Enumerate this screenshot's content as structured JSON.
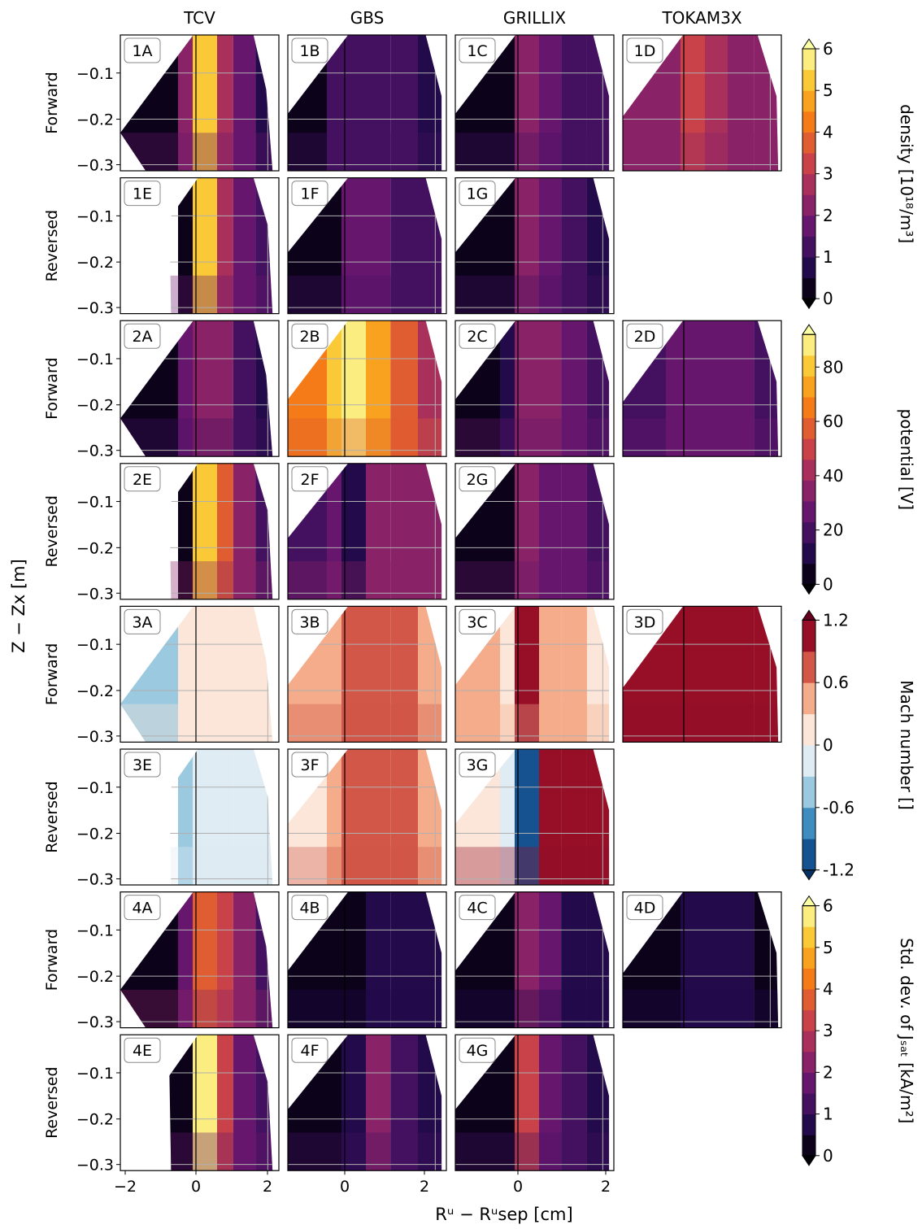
{
  "chart_data": {
    "type": "heatmap",
    "columns": [
      "TCV",
      "GBS",
      "GRILLIX",
      "TOKAM3X"
    ],
    "row_labels": [
      "Forward",
      "Reversed",
      "Forward",
      "Reversed",
      "Forward",
      "Reversed",
      "Forward",
      "Reversed"
    ],
    "xlabel": "Rᵘ − Rᵘsep [cm]",
    "ylabel": "Z − Zx [m]",
    "yticks": [
      "−0.1",
      "−0.2",
      "−0.3"
    ],
    "xticks_tcv": [
      "−2",
      "0",
      "2"
    ],
    "xticks_other": [
      "0",
      "2"
    ],
    "groups": [
      {
        "colorbar_label": "density [10¹⁸/m³]",
        "colormap": "inferno",
        "ticks": [
          "6",
          "5",
          "4",
          "3",
          "2",
          "1",
          "0"
        ],
        "range": [
          0,
          6
        ],
        "panels_forward": [
          "1A",
          "1B",
          "1C",
          "1D"
        ],
        "panels_reversed": [
          "1E",
          "1F",
          "1G"
        ],
        "levels": {
          "1A": [
            0,
            2.2,
            5.2,
            2.6,
            1.6,
            0.9
          ],
          "1B": [
            0.2,
            1.0,
            1.2,
            1.2,
            1.0,
            0.9
          ],
          "1C": [
            0.2,
            0.4,
            2.0,
            1.6,
            1.2,
            1.0
          ],
          "1D": [
            2.2,
            2.3,
            3.0,
            2.6,
            2.4,
            2.0
          ],
          "1E": [
            null,
            0.1,
            5.3,
            2.6,
            1.6,
            1.0
          ],
          "1F": [
            0.1,
            0.3,
            1.8,
            1.5,
            1.4,
            1.1
          ],
          "1G": [
            0.1,
            0.2,
            2.4,
            1.6,
            1.2,
            0.9
          ]
        }
      },
      {
        "colorbar_label": "potential [V]",
        "colormap": "inferno",
        "ticks": [
          "80",
          "60",
          "40",
          "20",
          "0"
        ],
        "range": [
          0,
          92
        ],
        "panels_forward": [
          "2A",
          "2B",
          "2C",
          "2D"
        ],
        "panels_reversed": [
          "2E",
          "2F",
          "2G"
        ],
        "levels": {
          "2A": [
            5,
            25,
            36,
            32,
            22,
            15
          ],
          "2B": [
            65,
            82,
            88,
            75,
            55,
            42
          ],
          "2C": [
            5,
            8,
            38,
            32,
            24,
            18
          ],
          "2D": [
            22,
            24,
            28,
            26,
            24,
            20
          ],
          "2E": [
            null,
            4,
            82,
            58,
            32,
            20
          ],
          "2F": [
            22,
            26,
            12,
            38,
            38,
            36
          ],
          "2G": [
            5,
            6,
            38,
            30,
            24,
            16
          ]
        }
      },
      {
        "colorbar_label": "Mach number []",
        "colormap": "RdBu_r",
        "ticks": [
          "1.2",
          "0.6",
          "0",
          "-0.6",
          "-1.2"
        ],
        "range": [
          -1.2,
          1.2
        ],
        "panels_forward": [
          "3A",
          "3B",
          "3C",
          "3D"
        ],
        "panels_reversed": [
          "3E",
          "3F",
          "3G"
        ],
        "levels": {
          "3A": [
            -0.4,
            0.2,
            0.1,
            0.05,
            0.05,
            0.05
          ],
          "3B": [
            0.35,
            0.55,
            0.8,
            0.7,
            0.6,
            0.45
          ],
          "3C": [
            0.3,
            0.0,
            1.15,
            0.45,
            0.35,
            0.2
          ],
          "3D": [
            0.9,
            0.95,
            1.1,
            1.05,
            1.0,
            0.95
          ],
          "3E": [
            null,
            -0.5,
            -0.1,
            -0.05,
            -0.05,
            -0.05
          ],
          "3F": [
            0.15,
            0.4,
            0.85,
            0.75,
            0.65,
            0.55
          ],
          "3G": [
            0.25,
            -0.2,
            -1.1,
            1.1,
            1.05,
            1.0
          ]
        }
      },
      {
        "colorbar_label": "Std. dev. of Jₛₐₜ [kA/m²]",
        "colormap": "inferno",
        "ticks": [
          "6",
          "5",
          "4",
          "3",
          "2",
          "1",
          "0"
        ],
        "range": [
          0,
          6
        ],
        "panels_forward": [
          "4A",
          "4B",
          "4C",
          "4D"
        ],
        "panels_reversed": [
          "4E",
          "4F",
          "4G"
        ],
        "levels": {
          "4A": [
            0.1,
            1.6,
            3.6,
            3.2,
            2.2,
            1.4
          ],
          "4B": [
            0.05,
            0.1,
            0.3,
            0.6,
            0.9,
            0.7
          ],
          "4C": [
            0.05,
            0.2,
            2.3,
            1.5,
            0.9,
            0.5
          ],
          "4D": [
            0.05,
            0.1,
            0.6,
            0.9,
            0.7,
            0.4
          ],
          "4E": [
            0.05,
            0.1,
            5.5,
            3.2,
            1.8,
            1.0
          ],
          "4F": [
            0.05,
            0.2,
            0.9,
            2.2,
            1.4,
            0.9
          ],
          "4G": [
            0.05,
            0.3,
            3.0,
            1.8,
            1.2,
            0.8
          ]
        }
      }
    ]
  }
}
